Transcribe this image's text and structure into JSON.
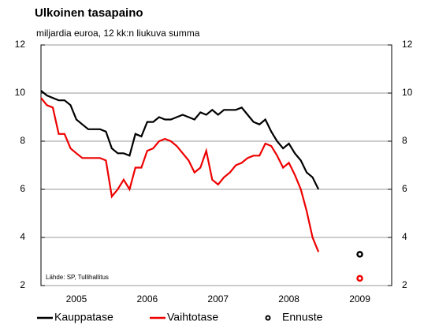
{
  "chart_data": {
    "type": "line",
    "title": "Ulkoinen tasapaino",
    "subtitle": "miljardia euroa, 12 kk:n liukuva summa",
    "source": "Lähde: SP, Tullihallitus",
    "x": [
      2005.0,
      2005.083,
      2005.167,
      2005.25,
      2005.333,
      2005.417,
      2005.5,
      2005.583,
      2005.667,
      2005.75,
      2005.833,
      2005.917,
      2006.0,
      2006.083,
      2006.167,
      2006.25,
      2006.333,
      2006.417,
      2006.5,
      2006.583,
      2006.667,
      2006.75,
      2006.833,
      2006.917,
      2007.0,
      2007.083,
      2007.167,
      2007.25,
      2007.333,
      2007.417,
      2007.5,
      2007.583,
      2007.667,
      2007.75,
      2007.833,
      2007.917,
      2008.0,
      2008.083,
      2008.167,
      2008.25,
      2008.333,
      2008.417,
      2008.5,
      2008.583,
      2008.667,
      2008.75,
      2008.833,
      2008.917
    ],
    "series": [
      {
        "name": "Kauppatase",
        "color": "#000000",
        "values": [
          10.1,
          9.9,
          9.8,
          9.7,
          9.7,
          9.5,
          8.9,
          8.7,
          8.5,
          8.5,
          8.5,
          8.4,
          7.7,
          7.5,
          7.5,
          7.4,
          8.3,
          8.2,
          8.8,
          8.8,
          9.0,
          8.9,
          8.9,
          9.0,
          9.1,
          9.0,
          8.9,
          9.2,
          9.1,
          9.3,
          9.1,
          9.3,
          9.3,
          9.3,
          9.4,
          9.1,
          8.8,
          8.7,
          8.9,
          8.4,
          8.0,
          7.7,
          7.9,
          7.5,
          7.2,
          6.7,
          6.5,
          6.0
        ]
      },
      {
        "name": "Vaihtotase",
        "color": "#ee0000",
        "values": [
          9.8,
          9.5,
          9.4,
          8.3,
          8.3,
          7.7,
          7.5,
          7.3,
          7.3,
          7.3,
          7.3,
          7.2,
          5.7,
          6.0,
          6.4,
          6.0,
          6.9,
          6.9,
          7.6,
          7.7,
          8.0,
          8.1,
          8.0,
          7.8,
          7.5,
          7.2,
          6.7,
          6.9,
          7.6,
          6.4,
          6.2,
          6.5,
          6.7,
          7.0,
          7.1,
          7.3,
          7.4,
          7.4,
          7.9,
          7.8,
          7.4,
          6.9,
          7.1,
          6.6,
          6.0,
          5.1,
          4.0,
          3.4
        ]
      }
    ],
    "forecast": {
      "name": "Ennuste",
      "x": [
        2009.5,
        2009.5
      ],
      "values": [
        3.3,
        2.3
      ],
      "colors": [
        "#000000",
        "#ee0000"
      ]
    },
    "xlim": [
      2005.0,
      2009.95
    ],
    "xticks": [
      {
        "value": 2005.5,
        "label": "2005"
      },
      {
        "value": 2006.5,
        "label": "2006"
      },
      {
        "value": 2007.5,
        "label": "2007"
      },
      {
        "value": 2008.5,
        "label": "2008"
      },
      {
        "value": 2009.5,
        "label": "2009"
      }
    ],
    "ylim": [
      2,
      12
    ],
    "yticks": [
      2,
      4,
      6,
      8,
      10,
      12
    ],
    "y2lim": [
      2,
      12
    ],
    "y2ticks": [
      2,
      4,
      6,
      8,
      10,
      12
    ],
    "grid": true
  }
}
